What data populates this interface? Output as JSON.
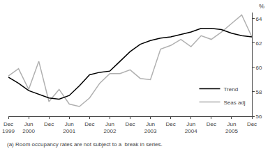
{
  "chart_data": {
    "type": "line",
    "categories": [
      "Dec\n1999",
      null,
      "Jun\n2000",
      null,
      "Dec",
      null,
      "Jun\n2001",
      null,
      "Dec",
      null,
      "Jun\n2002",
      null,
      "Dec",
      null,
      "Jun\n2003",
      null,
      "Dec",
      null,
      "Jun\n2004",
      null,
      "Dec",
      null,
      "Jun\n2005",
      null,
      "Dec"
    ],
    "series": [
      {
        "name": "Trend",
        "color": "#000000",
        "values": [
          59.2,
          58.7,
          58.1,
          57.8,
          57.5,
          57.4,
          57.7,
          58.5,
          59.4,
          59.6,
          59.7,
          60.5,
          61.3,
          61.9,
          62.2,
          62.4,
          62.5,
          62.7,
          62.9,
          63.2,
          63.2,
          63.1,
          62.8,
          62.6,
          62.5
        ]
      },
      {
        "name": "Seas adj",
        "color": "#b0b0b0",
        "values": [
          59.3,
          59.9,
          58.2,
          60.5,
          57.2,
          58.2,
          57.0,
          56.8,
          57.5,
          58.7,
          59.5,
          59.5,
          59.8,
          59.1,
          59.0,
          61.5,
          61.8,
          62.3,
          61.7,
          62.6,
          62.3,
          62.9,
          63.6,
          64.3,
          62.5
        ]
      }
    ],
    "ylabel": "%",
    "ylim": [
      56,
      64.5
    ],
    "yticks": [
      56,
      58,
      60,
      62,
      64
    ],
    "annotations": [
      "(a) Room occupancy rates are not subject to a  break in series."
    ],
    "legend": "lower right",
    "grid": false
  }
}
